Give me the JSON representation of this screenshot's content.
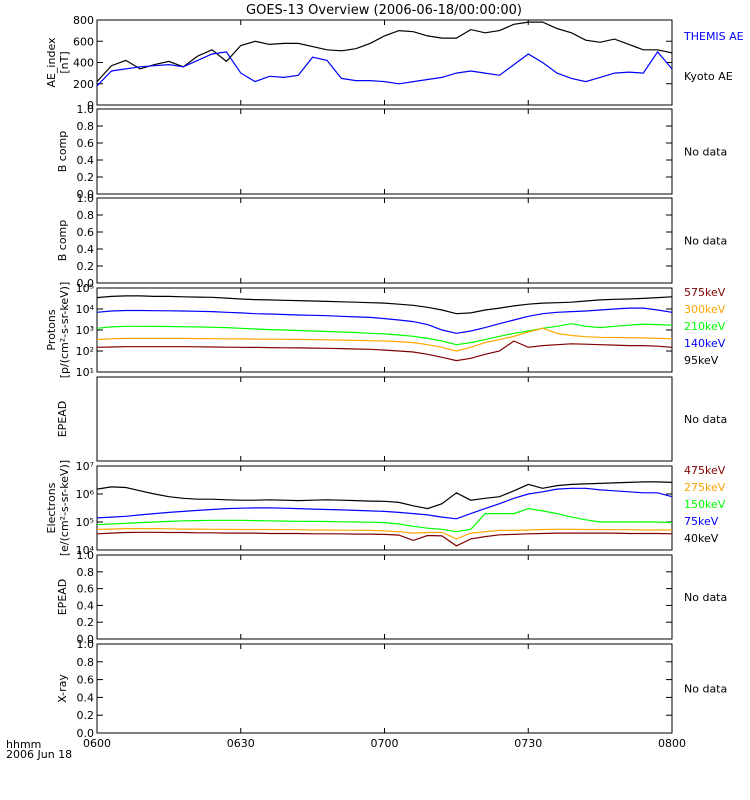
{
  "title": "GOES-13 Overview (2006-06-18/00:00:00)",
  "xaxis": {
    "corner_label_1": "hhmm",
    "corner_label_2": "2006 Jun 18",
    "ticks": [
      "0600",
      "0630",
      "0700",
      "0730",
      "0800"
    ],
    "range_minutes": [
      0,
      120
    ]
  },
  "no_data_label": "No data",
  "colors": {
    "black": "#000000",
    "blue": "#0000ff",
    "green": "#00ff00",
    "orange": "#ffa500",
    "darkred": "#800000"
  },
  "chart_data": [
    {
      "type": "line",
      "id": "ae",
      "ylabel_lines": [
        "AE_index",
        "[nT]"
      ],
      "ylim": [
        0,
        800
      ],
      "ytick_labels": [
        "0",
        "200",
        "400",
        "600",
        "800"
      ],
      "x_minutes": [
        0,
        3,
        6,
        9,
        12,
        15,
        18,
        21,
        24,
        27,
        30,
        33,
        36,
        39,
        42,
        45,
        48,
        51,
        54,
        57,
        60,
        63,
        66,
        69,
        72,
        75,
        78,
        81,
        84,
        87,
        90,
        93,
        96,
        99,
        102,
        105,
        108,
        111,
        114,
        117,
        120
      ],
      "series": [
        {
          "name": "Kyoto AE",
          "color": "black",
          "values": [
            220,
            370,
            420,
            340,
            380,
            410,
            360,
            460,
            520,
            410,
            560,
            600,
            570,
            580,
            580,
            550,
            520,
            510,
            530,
            580,
            650,
            700,
            690,
            650,
            630,
            630,
            710,
            680,
            700,
            760,
            780,
            780,
            720,
            680,
            610,
            590,
            620,
            570,
            520,
            520,
            490
          ]
        },
        {
          "name": "THEMIS AE",
          "color": "blue",
          "values": [
            180,
            320,
            340,
            360,
            370,
            380,
            360,
            420,
            480,
            500,
            300,
            220,
            270,
            260,
            280,
            450,
            420,
            250,
            230,
            230,
            220,
            200,
            220,
            240,
            260,
            300,
            320,
            300,
            280,
            380,
            480,
            400,
            300,
            250,
            220,
            260,
            300,
            310,
            300,
            500,
            340
          ]
        }
      ]
    },
    {
      "type": "line",
      "id": "bcomp1",
      "ylabel_lines": [
        "B comp"
      ],
      "ylim": [
        0,
        1
      ],
      "ytick_labels": [
        "0.0",
        "0.2",
        "0.4",
        "0.6",
        "0.8",
        "1.0"
      ],
      "series": [],
      "no_data": true
    },
    {
      "type": "line",
      "id": "bcomp2",
      "ylabel_lines": [
        "B comp"
      ],
      "ylim": [
        0,
        1
      ],
      "ytick_labels": [
        "0.0",
        "0.2",
        "0.4",
        "0.6",
        "0.8",
        "1.0"
      ],
      "series": [],
      "no_data": true
    },
    {
      "type": "line",
      "id": "protons",
      "ylabel_lines": [
        "Protons",
        "[p/(cm²-s-sr-keV)]"
      ],
      "ylog": true,
      "ylim": [
        10,
        100000
      ],
      "ytick_labels": [
        "10¹",
        "10²",
        "10³",
        "10⁴",
        "10⁵"
      ],
      "x_minutes": [
        0,
        3,
        6,
        9,
        12,
        15,
        18,
        21,
        24,
        27,
        30,
        33,
        36,
        39,
        42,
        45,
        48,
        51,
        54,
        57,
        60,
        63,
        66,
        69,
        72,
        75,
        78,
        81,
        84,
        87,
        90,
        93,
        96,
        99,
        102,
        105,
        108,
        111,
        114,
        117,
        120
      ],
      "series": [
        {
          "name": "95keV",
          "color": "black",
          "values": [
            35000,
            40000,
            42000,
            42000,
            40000,
            40000,
            38000,
            37000,
            36000,
            33000,
            30000,
            28000,
            27000,
            26000,
            25000,
            24000,
            23000,
            22000,
            21000,
            20000,
            19000,
            17000,
            15000,
            12000,
            9000,
            6000,
            6500,
            9000,
            11000,
            14000,
            17000,
            19000,
            20000,
            21000,
            24000,
            27000,
            29000,
            30000,
            32000,
            35000,
            38000
          ]
        },
        {
          "name": "140keV",
          "color": "blue",
          "values": [
            7000,
            8000,
            8500,
            8500,
            8300,
            8200,
            8000,
            7800,
            7500,
            7000,
            6500,
            6000,
            5800,
            5500,
            5200,
            5000,
            4800,
            4500,
            4200,
            4000,
            3500,
            3000,
            2500,
            1800,
            1000,
            700,
            900,
            1300,
            2000,
            3000,
            4500,
            6000,
            7000,
            7500,
            8000,
            9000,
            10000,
            11000,
            11000,
            9000,
            7000
          ]
        },
        {
          "name": "210keV",
          "color": "green",
          "values": [
            1200,
            1400,
            1500,
            1500,
            1480,
            1460,
            1420,
            1400,
            1350,
            1300,
            1200,
            1120,
            1050,
            1000,
            950,
            900,
            850,
            800,
            760,
            700,
            650,
            580,
            500,
            400,
            300,
            200,
            250,
            350,
            500,
            700,
            900,
            1200,
            1500,
            2000,
            1500,
            1300,
            1500,
            1700,
            1900,
            1800,
            1700
          ]
        },
        {
          "name": "300keV",
          "color": "orange",
          "values": [
            350,
            380,
            400,
            400,
            400,
            400,
            400,
            390,
            385,
            380,
            375,
            370,
            365,
            360,
            355,
            350,
            340,
            330,
            320,
            310,
            300,
            280,
            250,
            200,
            150,
            100,
            150,
            250,
            350,
            500,
            800,
            1200,
            700,
            550,
            480,
            450,
            440,
            430,
            420,
            400,
            380
          ]
        },
        {
          "name": "575keV",
          "color": "darkred",
          "values": [
            150,
            155,
            160,
            160,
            160,
            160,
            160,
            158,
            155,
            152,
            150,
            148,
            145,
            142,
            140,
            138,
            135,
            130,
            125,
            120,
            110,
            100,
            90,
            70,
            50,
            35,
            45,
            70,
            100,
            300,
            150,
            180,
            200,
            220,
            210,
            200,
            190,
            180,
            180,
            170,
            150
          ]
        }
      ]
    },
    {
      "type": "line",
      "id": "epead1",
      "ylabel_lines": [
        "EPEAD"
      ],
      "ylim": [
        0,
        1
      ],
      "ytick_labels": [],
      "series": [],
      "no_data": true
    },
    {
      "type": "line",
      "id": "electrons",
      "ylabel_lines": [
        "Electrons",
        "[e/(cm²-s-sr-keV)]"
      ],
      "ylog": true,
      "ylim": [
        10000,
        10000000
      ],
      "ytick_labels": [
        "10⁴",
        "10⁵",
        "10⁶",
        "10⁷"
      ],
      "x_minutes": [
        0,
        3,
        6,
        9,
        12,
        15,
        18,
        21,
        24,
        27,
        30,
        33,
        36,
        39,
        42,
        45,
        48,
        51,
        54,
        57,
        60,
        63,
        66,
        69,
        72,
        75,
        78,
        81,
        84,
        87,
        90,
        93,
        96,
        99,
        102,
        105,
        108,
        111,
        114,
        117,
        120
      ],
      "series": [
        {
          "name": "40keV",
          "color": "black",
          "values": [
            1500000,
            1800000,
            1700000,
            1300000,
            1000000,
            800000,
            700000,
            650000,
            650000,
            620000,
            600000,
            600000,
            620000,
            600000,
            580000,
            600000,
            620000,
            600000,
            580000,
            560000,
            550000,
            500000,
            380000,
            300000,
            450000,
            1100000,
            600000,
            700000,
            800000,
            1300000,
            2200000,
            1600000,
            2000000,
            2200000,
            2300000,
            2400000,
            2500000,
            2600000,
            2700000,
            2700000,
            2600000
          ]
        },
        {
          "name": "75keV",
          "color": "blue",
          "values": [
            140000,
            150000,
            160000,
            180000,
            200000,
            220000,
            240000,
            260000,
            280000,
            300000,
            310000,
            320000,
            320000,
            310000,
            300000,
            290000,
            280000,
            270000,
            260000,
            250000,
            240000,
            220000,
            200000,
            180000,
            150000,
            130000,
            200000,
            300000,
            450000,
            700000,
            1000000,
            1200000,
            1500000,
            1600000,
            1600000,
            1400000,
            1300000,
            1200000,
            1100000,
            1100000,
            800000
          ]
        },
        {
          "name": "150keV",
          "color": "green",
          "values": [
            80000,
            85000,
            90000,
            95000,
            100000,
            105000,
            110000,
            112000,
            115000,
            115000,
            115000,
            112000,
            110000,
            108000,
            106000,
            105000,
            104000,
            102000,
            100000,
            98000,
            95000,
            85000,
            70000,
            60000,
            55000,
            45000,
            55000,
            200000,
            200000,
            200000,
            300000,
            250000,
            200000,
            150000,
            120000,
            100000,
            100000,
            100000,
            100000,
            100000,
            95000
          ]
        },
        {
          "name": "275keV",
          "color": "orange",
          "values": [
            55000,
            56000,
            58000,
            58000,
            58000,
            57000,
            56000,
            56000,
            55000,
            55000,
            54000,
            54000,
            54000,
            53000,
            53000,
            52000,
            52000,
            51000,
            51000,
            50000,
            48000,
            45000,
            40000,
            42000,
            43000,
            25000,
            40000,
            45000,
            50000,
            50000,
            52000,
            54000,
            55000,
            55000,
            54000,
            54000,
            53000,
            53000,
            52000,
            52000,
            52000
          ]
        },
        {
          "name": "475keV",
          "color": "darkred",
          "values": [
            38000,
            40000,
            42000,
            43000,
            43000,
            42000,
            42000,
            41000,
            41000,
            40000,
            40000,
            40000,
            39000,
            39000,
            39000,
            38000,
            38000,
            38000,
            37000,
            37000,
            36000,
            34000,
            22000,
            33000,
            32000,
            14000,
            25000,
            30000,
            35000,
            36000,
            38000,
            39000,
            40000,
            40000,
            40000,
            40000,
            40000,
            39000,
            39000,
            39000,
            38000
          ]
        }
      ]
    },
    {
      "type": "line",
      "id": "epead2",
      "ylabel_lines": [
        "EPEAD"
      ],
      "ylim": [
        0,
        1
      ],
      "ytick_labels": [
        "0.0",
        "0.2",
        "0.4",
        "0.6",
        "0.8",
        "1.0"
      ],
      "series": [],
      "no_data": true
    },
    {
      "type": "line",
      "id": "xray",
      "ylabel_lines": [
        "X-ray"
      ],
      "ylim": [
        0,
        1
      ],
      "ytick_labels": [
        "0.0",
        "0.2",
        "0.4",
        "0.6",
        "0.8",
        "1.0"
      ],
      "series": [],
      "no_data": true
    }
  ]
}
